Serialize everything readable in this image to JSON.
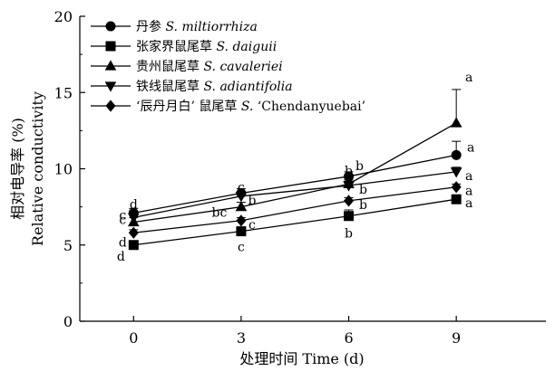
{
  "chart_data": {
    "type": "line",
    "xlabel": "处理时间 Time (d)",
    "ylabel_cn": "相对电导率 (%)",
    "ylabel_en": "Relative conductivity",
    "x": [
      0,
      3,
      6,
      9
    ],
    "x_tick_labels": [
      "0",
      "3",
      "6",
      "9"
    ],
    "xlim": [
      -1.5,
      11.5
    ],
    "ylim": [
      0,
      20
    ],
    "y_ticks": [
      0,
      5,
      10,
      15,
      20
    ],
    "y_tick_labels": [
      "0",
      "5",
      "10",
      "15",
      "20"
    ],
    "legend_position": "top-left",
    "series": [
      {
        "cn": "丹参",
        "sp": "S. miltiorrhiza",
        "marker": "circle",
        "values": [
          7.1,
          8.4,
          9.5,
          10.9
        ],
        "errors": [
          0.3,
          0.3,
          0.3,
          0.9
        ],
        "letters": [
          "d",
          "c",
          "b",
          "a"
        ]
      },
      {
        "cn": "张家界鼠尾草",
        "sp": "S. daiguii",
        "marker": "square",
        "values": [
          5.0,
          5.9,
          6.9,
          8.0
        ],
        "errors": [
          0.2,
          0.2,
          0.4,
          0.2
        ],
        "letters": [
          "d",
          "c",
          "b",
          "a"
        ]
      },
      {
        "cn": "贵州鼠尾草",
        "sp": "S. cavaleriei",
        "marker": "triangle-up",
        "values": [
          6.5,
          7.5,
          9.0,
          13.0
        ],
        "errors": [
          0.3,
          0.3,
          0.3,
          2.2
        ],
        "letters": [
          "c",
          "bc",
          "b",
          "a"
        ]
      },
      {
        "cn": "铁线鼠尾草",
        "sp": "S. adiantifolia",
        "marker": "triangle-down",
        "values": [
          6.8,
          8.2,
          8.9,
          9.8
        ],
        "errors": [
          0.3,
          0.3,
          0.3,
          0.3
        ],
        "letters": [
          "c",
          "b",
          "b",
          "a"
        ]
      },
      {
        "cn": "‘辰丹月白’ 鼠尾草",
        "sp_prefix": "S.",
        "sp_suffix": "‘Chendanyuebai’",
        "marker": "diamond",
        "values": [
          5.8,
          6.6,
          7.9,
          8.8
        ],
        "errors": [
          0.2,
          0.2,
          0.2,
          0.2
        ],
        "letters": [
          "d",
          "c",
          "b",
          "a"
        ]
      }
    ]
  }
}
